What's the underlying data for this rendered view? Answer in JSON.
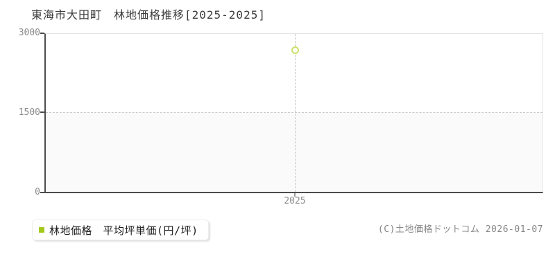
{
  "title": "東海市大田町　林地価格推移[2025-2025]",
  "chart_data": {
    "type": "scatter",
    "title": "東海市大田町　林地価格推移[2025-2025]",
    "x": [
      2025
    ],
    "series": [
      {
        "name": "林地価格　平均坪単価(円/坪)",
        "values": [
          2700
        ]
      }
    ],
    "xlabel": "",
    "ylabel": "",
    "ylim": [
      0,
      3000
    ],
    "yticks": [
      "0",
      "1500",
      "3000"
    ],
    "xticks": [
      "2025"
    ],
    "grid": {
      "horizontal_dashed_at": 1500,
      "vertical_dashed_at": 2025,
      "lower_band_fill": "#fafafa"
    },
    "legend_position": "bottom-left",
    "point_style": "hollow circle"
  },
  "legend": {
    "label": "林地価格　平均坪単価(円/坪)",
    "marker_color": "#a3c91c"
  },
  "footer": {
    "copyright": "(C)土地価格ドットコム 2026-01-07"
  },
  "colors": {
    "series_point_stroke": "#c9e16a",
    "legend_marker": "#a3c91c",
    "axis_line": "#4c4c4c",
    "grid_dash": "#c9c9c9",
    "tick_label": "#8b8b8b",
    "title_text": "#3c3c3c",
    "legend_text": "#1c1c1c",
    "copyright_text": "#868686",
    "plot_lower_band": "#fafafa",
    "background": "#ffffff"
  }
}
